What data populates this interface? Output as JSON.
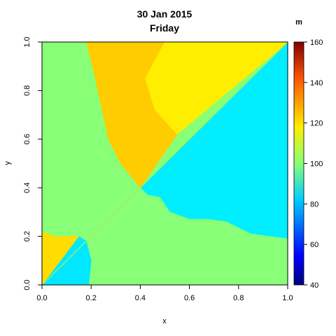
{
  "chart_data": {
    "type": "heatmap",
    "title": "30 Jan 2015",
    "subtitle": "Friday",
    "xlabel": "x",
    "ylabel": "y",
    "xlim": [
      0,
      1
    ],
    "ylim": [
      0,
      1
    ],
    "x_ticks": [
      "0.0",
      "0.2",
      "0.4",
      "0.6",
      "0.8",
      "1.0"
    ],
    "y_ticks": [
      "0.0",
      "0.2",
      "0.4",
      "0.6",
      "0.8",
      "1.0"
    ],
    "colorbar": {
      "unit": "m",
      "range": [
        40,
        160
      ],
      "ticks": [
        "40",
        "60",
        "80",
        "100",
        "120",
        "140",
        "160"
      ]
    },
    "regions": [
      {
        "name": "upper-left-green",
        "value": 100,
        "color": "#88ff77",
        "polygon": [
          [
            0.0,
            0.1
          ],
          [
            0.0,
            1.0
          ],
          [
            0.18,
            1.0
          ],
          [
            0.21,
            0.88
          ],
          [
            0.24,
            0.74
          ],
          [
            0.27,
            0.6
          ],
          [
            0.32,
            0.5
          ],
          [
            0.4,
            0.4
          ],
          [
            0.0,
            0.1
          ]
        ]
      },
      {
        "name": "top-orange",
        "value": 122,
        "color": "#ffcc00",
        "polygon": [
          [
            0.18,
            1.0
          ],
          [
            0.5,
            1.0
          ],
          [
            0.42,
            0.85
          ],
          [
            0.46,
            0.72
          ],
          [
            0.55,
            0.62
          ],
          [
            0.4,
            0.4
          ],
          [
            0.32,
            0.5
          ],
          [
            0.27,
            0.6
          ],
          [
            0.24,
            0.74
          ],
          [
            0.21,
            0.88
          ]
        ]
      },
      {
        "name": "top-yellow",
        "value": 115,
        "color": "#ffee00",
        "polygon": [
          [
            0.5,
            1.0
          ],
          [
            1.0,
            1.0
          ],
          [
            0.55,
            0.62
          ],
          [
            0.46,
            0.72
          ],
          [
            0.42,
            0.85
          ]
        ]
      },
      {
        "name": "lower-right-cyan",
        "value": 88,
        "color": "#00eeff",
        "polygon": [
          [
            1.0,
            1.0
          ],
          [
            1.0,
            0.19
          ],
          [
            0.85,
            0.21
          ],
          [
            0.75,
            0.26
          ],
          [
            0.68,
            0.27
          ],
          [
            0.6,
            0.27
          ],
          [
            0.52,
            0.3
          ],
          [
            0.48,
            0.36
          ],
          [
            0.43,
            0.37
          ],
          [
            0.4,
            0.4
          ]
        ]
      },
      {
        "name": "bottom-green",
        "value": 100,
        "color": "#88ff77",
        "polygon": [
          [
            0.4,
            0.4
          ],
          [
            0.43,
            0.37
          ],
          [
            0.48,
            0.36
          ],
          [
            0.52,
            0.3
          ],
          [
            0.6,
            0.27
          ],
          [
            0.68,
            0.27
          ],
          [
            0.75,
            0.26
          ],
          [
            0.85,
            0.21
          ],
          [
            1.0,
            0.19
          ],
          [
            1.0,
            0.0
          ],
          [
            0.19,
            0.0
          ],
          [
            0.2,
            0.1
          ],
          [
            0.18,
            0.18
          ],
          [
            0.3,
            0.3
          ],
          [
            0.36,
            0.36
          ]
        ]
      },
      {
        "name": "bottom-left-cyan",
        "value": 90,
        "color": "#00e8ff",
        "polygon": [
          [
            0.0,
            0.0
          ],
          [
            0.19,
            0.0
          ],
          [
            0.2,
            0.1
          ],
          [
            0.18,
            0.18
          ],
          [
            0.15,
            0.2
          ],
          [
            0.0,
            0.0
          ]
        ]
      },
      {
        "name": "bottom-left-yellow",
        "value": 117,
        "color": "#ffdd00",
        "polygon": [
          [
            0.0,
            0.0
          ],
          [
            0.0,
            0.22
          ],
          [
            0.05,
            0.2
          ],
          [
            0.12,
            0.2
          ],
          [
            0.15,
            0.2
          ],
          [
            0.0,
            0.0
          ]
        ]
      }
    ]
  }
}
